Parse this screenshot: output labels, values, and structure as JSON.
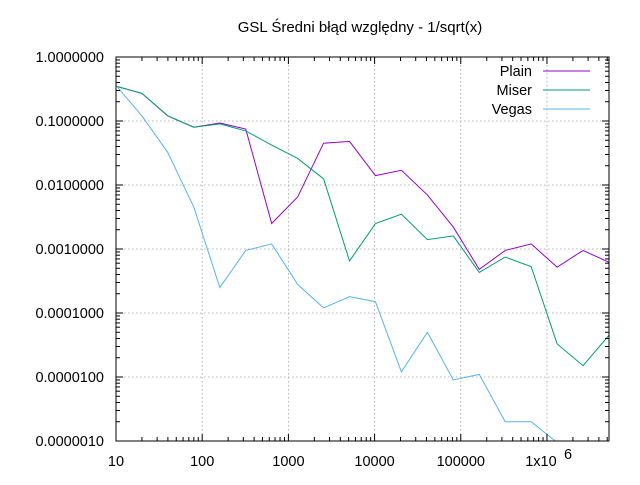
{
  "chart_data": {
    "type": "line",
    "title": "GSL Średni błąd względny - 1/sqrt(x)",
    "xlabel": "",
    "ylabel": "",
    "xscale": "log",
    "yscale": "log",
    "xlim": [
      10,
      5242880
    ],
    "ylim": [
      1e-06,
      1
    ],
    "grid": true,
    "legend_position": "top-right",
    "x_tick_labels": [
      "10",
      "100",
      "1000",
      "10000",
      "100000",
      "1x10^6"
    ],
    "x_tick_values": [
      10,
      100,
      1000,
      10000,
      100000,
      1000000
    ],
    "y_tick_labels": [
      "0.0000010",
      "0.0000100",
      "0.0001000",
      "0.0010000",
      "0.0100000",
      "0.1000000",
      "1.0000000"
    ],
    "y_tick_values": [
      1e-06,
      1e-05,
      0.0001,
      0.001,
      0.01,
      0.1,
      1
    ],
    "x": [
      10,
      20,
      40,
      80,
      160,
      320,
      640,
      1280,
      2560,
      5120,
      10240,
      20480,
      40960,
      81920,
      163840,
      327680,
      655360,
      1310720,
      2621440,
      5242880
    ],
    "series": [
      {
        "name": "Plain",
        "color": "#9400d3",
        "values": [
          0.35,
          0.27,
          0.12,
          0.08,
          0.093,
          0.075,
          0.0025,
          0.0065,
          0.045,
          0.048,
          0.014,
          0.017,
          0.007,
          0.0022,
          0.00048,
          0.00095,
          0.0012,
          0.00052,
          0.00095,
          0.00062
        ]
      },
      {
        "name": "Miser",
        "color": "#009e73",
        "values": [
          0.35,
          0.27,
          0.12,
          0.08,
          0.09,
          0.07,
          0.042,
          0.026,
          0.0125,
          0.00065,
          0.0025,
          0.0035,
          0.0014,
          0.0016,
          0.00043,
          0.00075,
          0.00053,
          3.3e-05,
          1.5e-05,
          4.5e-05
        ]
      },
      {
        "name": "Vegas",
        "color": "#56b4e9",
        "values": [
          0.36,
          0.12,
          0.032,
          0.0045,
          0.00025,
          0.00095,
          0.0012,
          0.00028,
          0.00012,
          0.00018,
          0.00015,
          1.2e-05,
          5e-05,
          9e-06,
          1.1e-05,
          2e-06,
          2e-06,
          9.5e-07,
          9e-07,
          9e-07
        ]
      }
    ]
  }
}
